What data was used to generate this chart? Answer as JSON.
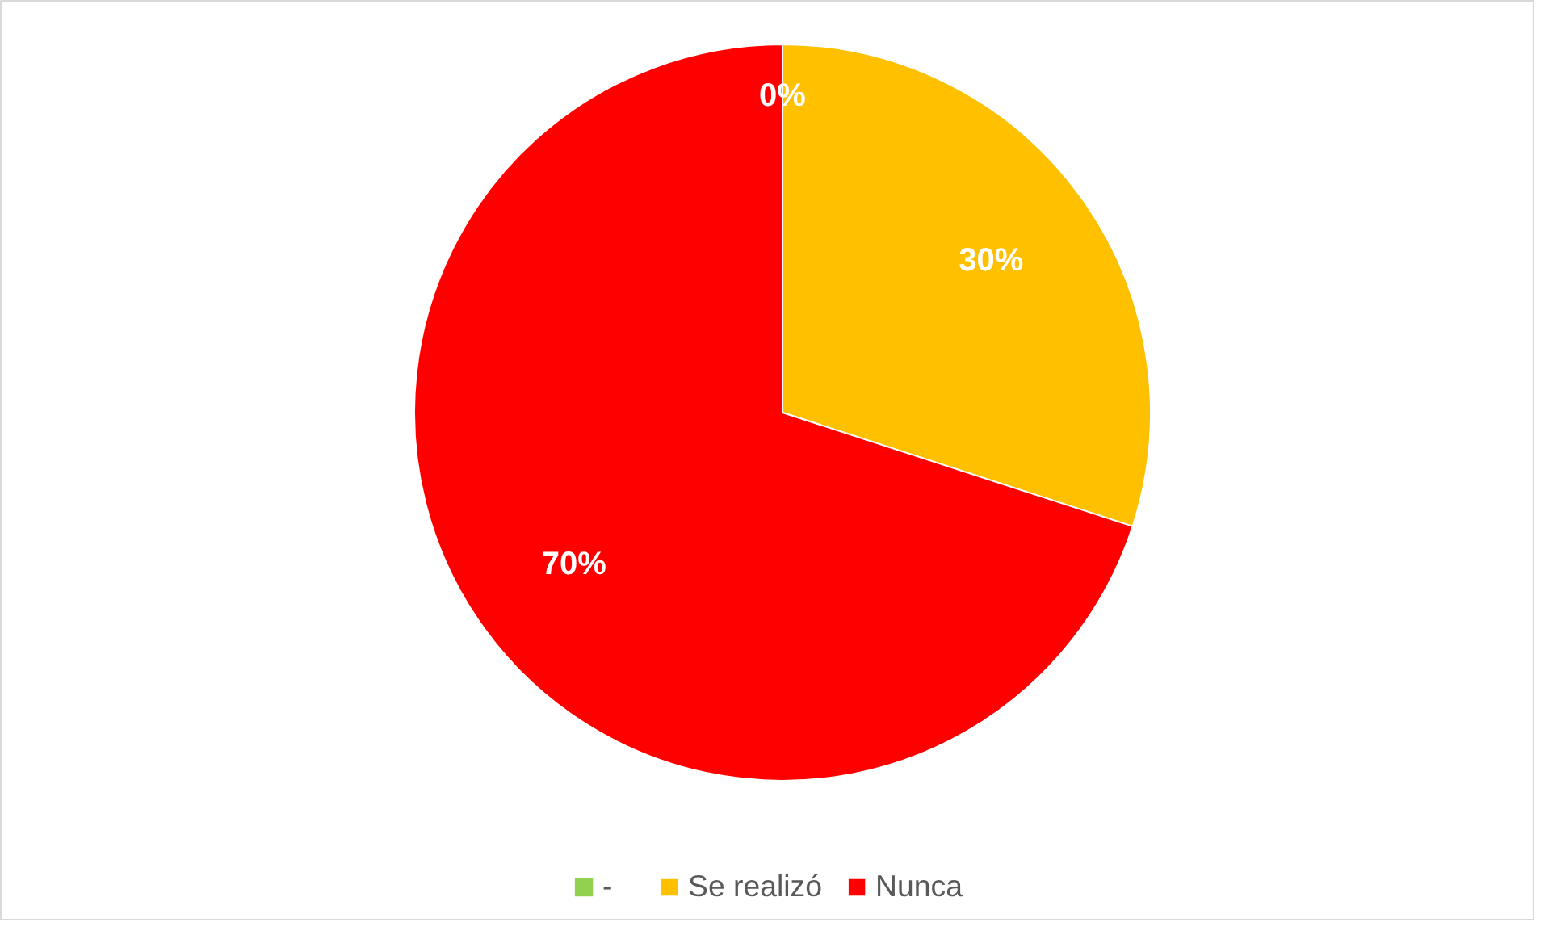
{
  "chart_data": {
    "type": "pie",
    "categories": [
      "-",
      "Se realizó",
      "Nunca"
    ],
    "values": [
      0,
      30,
      70
    ],
    "colors": [
      "#92d050",
      "#ffc000",
      "#ff0000"
    ],
    "value_labels": [
      "0%",
      "30%",
      "70%"
    ],
    "legend": "bottom"
  }
}
